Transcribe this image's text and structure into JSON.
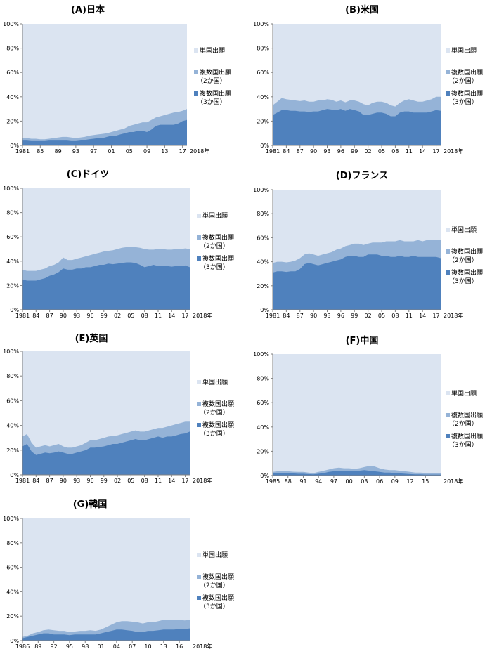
{
  "colors": {
    "single": "#dbe4f1",
    "multi2": "#95b3d7",
    "multi3": "#4f81bd",
    "axis": "#808080"
  },
  "legend": {
    "single": "単国出願",
    "multi2_line1": "複数国出願",
    "multi2_line2": "（2か国）",
    "multi3_line1": "複数国出願",
    "multi3_line2": "（3か国）"
  },
  "chart_data": [
    {
      "type": "area",
      "title": "(A)日本",
      "x_start": 1981,
      "x_end": 2018,
      "x_ticks": [
        "1981",
        "85",
        "89",
        "93",
        "97",
        "01",
        "05",
        "09",
        "13",
        "17"
      ],
      "x_tick_years": [
        1981,
        1985,
        1989,
        1993,
        1997,
        2001,
        2005,
        2009,
        2013,
        2017
      ],
      "x_end_label": "2018年",
      "y_ticks": [
        "0%",
        "20%",
        "40%",
        "60%",
        "80%",
        "100%"
      ],
      "ylim": [
        0,
        100
      ],
      "series": [
        {
          "name": "複数国出願（3か国）",
          "values": [
            4,
            4,
            3.5,
            3.5,
            3.5,
            3.5,
            4,
            4,
            4,
            4,
            4,
            3.5,
            3.5,
            4,
            4.5,
            5,
            5.5,
            6,
            6,
            7,
            8,
            8,
            9,
            10,
            11,
            11,
            12,
            12,
            11,
            13,
            16,
            17,
            17,
            17,
            17,
            18,
            20,
            21
          ]
        },
        {
          "name": "複数国出願（2か国）",
          "values": [
            6,
            6,
            5.5,
            5.5,
            5,
            5,
            5.5,
            6,
            6.5,
            7,
            7,
            6.5,
            6,
            6.5,
            7,
            8,
            8.5,
            9,
            9.5,
            10,
            11,
            12,
            13,
            14,
            16,
            17,
            18,
            19,
            19,
            21,
            23,
            24,
            25,
            26,
            27,
            27.5,
            28.5,
            30
          ]
        }
      ]
    },
    {
      "type": "area",
      "title": "(B)米国",
      "x_start": 1981,
      "x_end": 2018,
      "x_ticks": [
        "1981",
        "84",
        "87",
        "90",
        "93",
        "96",
        "99",
        "02",
        "05",
        "08",
        "11",
        "14",
        "17"
      ],
      "x_tick_years": [
        1981,
        1984,
        1987,
        1990,
        1993,
        1996,
        1999,
        2002,
        2005,
        2008,
        2011,
        2014,
        2017
      ],
      "x_end_label": "2018年",
      "y_ticks": [
        "0%",
        "20%",
        "40%",
        "60%",
        "80%",
        "100%"
      ],
      "ylim": [
        0,
        100
      ],
      "series": [
        {
          "name": "複数国出願（3か国）",
          "values": [
            25,
            27,
            29,
            29,
            28.5,
            28.5,
            28,
            28,
            27.5,
            28,
            28,
            29,
            30,
            29.5,
            29,
            30,
            28.5,
            30,
            29,
            28,
            25,
            25,
            26,
            27,
            27,
            26,
            24,
            24,
            27,
            28,
            28,
            27,
            27,
            27,
            27,
            28,
            29,
            28.5
          ]
        },
        {
          "name": "複数国出願（2か国）",
          "values": [
            33,
            36,
            39,
            38,
            37.5,
            37,
            36.5,
            37,
            36,
            36,
            37,
            37,
            38,
            37.5,
            36,
            37,
            35.5,
            37,
            37,
            36,
            34,
            33,
            35,
            36,
            36,
            35,
            33,
            32,
            35,
            37,
            38,
            37,
            36,
            36,
            37,
            38,
            40,
            40
          ]
        }
      ]
    },
    {
      "type": "area",
      "title": "(C)ドイツ",
      "x_start": 1981,
      "x_end": 2018,
      "x_ticks": [
        "1981",
        "84",
        "87",
        "90",
        "93",
        "96",
        "99",
        "02",
        "05",
        "08",
        "11",
        "14",
        "17"
      ],
      "x_tick_years": [
        1981,
        1984,
        1987,
        1990,
        1993,
        1996,
        1999,
        2002,
        2005,
        2008,
        2011,
        2014,
        2017
      ],
      "x_end_label": "2018年",
      "y_ticks": [
        "0%",
        "20%",
        "40%",
        "60%",
        "80%",
        "100%"
      ],
      "ylim": [
        0,
        100
      ],
      "series": [
        {
          "name": "複数国出願（3か国）",
          "values": [
            25,
            24,
            24,
            24,
            25,
            26,
            28,
            29,
            31,
            34,
            33,
            33,
            34,
            34,
            35,
            35,
            36,
            37,
            37,
            38,
            37.5,
            38,
            38.5,
            39,
            39,
            38.5,
            37,
            35,
            36,
            37,
            36,
            36,
            36,
            35.5,
            36,
            36,
            36.5,
            35
          ]
        },
        {
          "name": "複数国出願（2か国）",
          "values": [
            33,
            32,
            32,
            32,
            33,
            34,
            36,
            37,
            39,
            43,
            41,
            41,
            42,
            43,
            44,
            45,
            46,
            47,
            48,
            48.5,
            49,
            50,
            51,
            51.5,
            52,
            51.5,
            51,
            50,
            49.5,
            49.5,
            50,
            50,
            49.5,
            49.5,
            50,
            50,
            50.5,
            50
          ]
        }
      ]
    },
    {
      "type": "area",
      "title": "(D)フランス",
      "x_start": 1981,
      "x_end": 2018,
      "x_ticks": [
        "1981",
        "84",
        "87",
        "90",
        "93",
        "96",
        "99",
        "02",
        "05",
        "08",
        "11",
        "14",
        "17"
      ],
      "x_tick_years": [
        1981,
        1984,
        1987,
        1990,
        1993,
        1996,
        1999,
        2002,
        2005,
        2008,
        2011,
        2014,
        2017
      ],
      "x_end_label": "2018年",
      "y_ticks": [
        "0%",
        "20%",
        "40%",
        "60%",
        "80%",
        "100%"
      ],
      "ylim": [
        0,
        100
      ],
      "series": [
        {
          "name": "複数国出願（3か国）",
          "values": [
            31,
            32,
            32,
            31.5,
            32,
            32,
            34,
            38,
            39,
            38,
            37,
            38,
            39,
            40,
            41,
            42,
            44,
            45,
            45,
            44,
            44,
            46,
            46,
            46,
            45,
            45,
            44,
            44,
            45,
            44,
            44,
            45,
            44,
            44,
            44,
            44,
            44,
            43
          ]
        },
        {
          "name": "複数国出願（2か国）",
          "values": [
            39,
            40,
            40,
            39.5,
            40,
            41,
            43,
            46,
            47,
            46,
            45,
            46,
            47,
            48,
            50,
            51,
            53,
            54,
            55,
            55,
            54,
            55,
            56,
            56,
            56,
            57,
            57,
            57,
            58,
            57,
            57,
            57,
            58,
            57,
            58,
            58,
            58,
            58
          ]
        }
      ]
    },
    {
      "type": "area",
      "title": "(E)英国",
      "x_start": 1981,
      "x_end": 2018,
      "x_ticks": [
        "1981",
        "84",
        "87",
        "90",
        "93",
        "96",
        "99",
        "02",
        "05",
        "08",
        "11",
        "14",
        "17"
      ],
      "x_tick_years": [
        1981,
        1984,
        1987,
        1990,
        1993,
        1996,
        1999,
        2002,
        2005,
        2008,
        2011,
        2014,
        2017
      ],
      "x_end_label": "2018年",
      "y_ticks": [
        "0%",
        "20%",
        "40%",
        "60%",
        "80%",
        "100%"
      ],
      "ylim": [
        0,
        100
      ],
      "series": [
        {
          "name": "複数国出願（3か国）",
          "values": [
            23,
            25,
            19,
            16,
            17,
            18,
            17.5,
            18,
            19,
            18,
            17,
            17,
            18,
            19,
            20,
            22,
            22,
            22.5,
            23,
            24,
            25,
            25,
            26,
            27,
            28,
            29,
            28,
            28,
            29,
            30,
            31,
            30,
            31,
            31,
            32,
            33,
            33.5,
            35
          ]
        },
        {
          "name": "複数国出願（2か国）",
          "values": [
            31,
            33,
            26,
            22,
            23,
            24,
            23,
            24,
            25,
            23,
            22,
            22,
            23,
            24,
            26,
            28,
            28,
            29,
            30,
            31,
            31.5,
            32,
            33,
            34,
            35,
            36,
            35,
            35,
            36,
            37,
            38,
            38,
            39,
            40,
            41,
            42,
            43,
            43
          ]
        }
      ]
    },
    {
      "type": "area",
      "title": "(F)中国",
      "x_start": 1985,
      "x_end": 2018,
      "x_ticks": [
        "1985",
        "88",
        "91",
        "94",
        "97",
        "00",
        "03",
        "06",
        "09",
        "12",
        "15"
      ],
      "x_tick_years": [
        1985,
        1988,
        1991,
        1994,
        1997,
        2000,
        2003,
        2006,
        2009,
        2012,
        2015
      ],
      "x_end_label": "2018年",
      "y_ticks": [
        "0%",
        "20%",
        "40%",
        "60%",
        "80%",
        "100%"
      ],
      "ylim": [
        0,
        100
      ],
      "series": [
        {
          "name": "複数国出願（3か国）",
          "values": [
            2,
            2,
            2,
            2,
            1.8,
            1.5,
            1.5,
            1.2,
            1,
            1.5,
            2,
            3,
            3.5,
            4,
            3.5,
            4,
            3.5,
            4,
            4.5,
            4,
            3.5,
            3,
            2.5,
            2.5,
            2,
            1.8,
            1.5,
            1.2,
            1,
            1,
            0.8,
            0.8,
            0.8,
            0.8
          ]
        },
        {
          "name": "複数国出願（2か国）",
          "values": [
            3,
            3.5,
            3.5,
            3.5,
            3.2,
            3,
            3,
            2.5,
            2,
            3,
            4,
            5,
            6,
            6.5,
            6,
            6,
            5.5,
            6,
            7,
            8,
            7.5,
            6,
            5,
            4.5,
            4.5,
            4,
            3.5,
            3,
            2.5,
            2.5,
            2.2,
            2,
            2,
            2
          ]
        }
      ]
    },
    {
      "type": "area",
      "title": "(G)韓国",
      "x_start": 1986,
      "x_end": 2018,
      "x_ticks": [
        "1986",
        "89",
        "92",
        "95",
        "98",
        "01",
        "04",
        "07",
        "10",
        "13",
        "16"
      ],
      "x_tick_years": [
        1986,
        1989,
        1992,
        1995,
        1998,
        2001,
        2004,
        2007,
        2010,
        2013,
        2016
      ],
      "x_end_label": "2018年",
      "y_ticks": [
        "0%",
        "20%",
        "40%",
        "60%",
        "80%",
        "100%"
      ],
      "ylim": [
        0,
        100
      ],
      "series": [
        {
          "name": "複数国出願（3か国）",
          "values": [
            2,
            3,
            4,
            5,
            6,
            6,
            5,
            5,
            5,
            4.5,
            5,
            5,
            5,
            5,
            5,
            6,
            7,
            8,
            9,
            9,
            8.5,
            8,
            7,
            7,
            8,
            8,
            8.5,
            9,
            9,
            9,
            9.5,
            9.5,
            10
          ]
        },
        {
          "name": "複数国出願（2か国）",
          "values": [
            3,
            4,
            6,
            7,
            8.5,
            9,
            8.5,
            8,
            8,
            7,
            7.5,
            8,
            8,
            8.5,
            8,
            9,
            11,
            13,
            15,
            16,
            16,
            15.5,
            15,
            14,
            15,
            15,
            16,
            17,
            17,
            17,
            17,
            16.5,
            17
          ]
        }
      ]
    }
  ]
}
